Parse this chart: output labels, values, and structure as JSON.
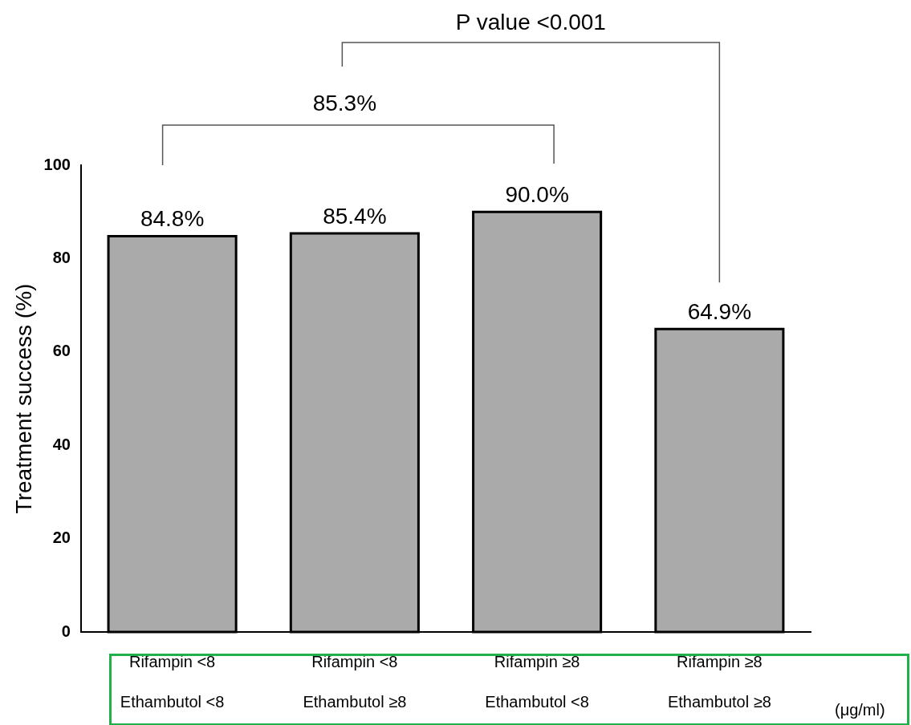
{
  "chart_data": {
    "type": "bar",
    "ylabel": "Treatment success (%)",
    "categories": [
      "Rifampin <8\nEthambutol <8",
      "Rifampin <8\nEthambutol ≥8",
      "Rifampin ≥8\nEthambutol <8",
      "Rifampin ≥8\nEthambutol ≥8"
    ],
    "values": [
      84.8,
      85.4,
      90.0,
      64.9
    ],
    "color": "#aaaaaa",
    "value_labels": [
      "84.8%",
      "85.4%",
      "90.0%",
      "64.9%"
    ],
    "ylim": [
      0,
      100
    ],
    "yticks": [
      0,
      20,
      40,
      60,
      80,
      100
    ],
    "grid": false,
    "legend": false,
    "annotations": [
      "85.3%",
      "P value <0.001",
      "(μg/ml)"
    ]
  }
}
